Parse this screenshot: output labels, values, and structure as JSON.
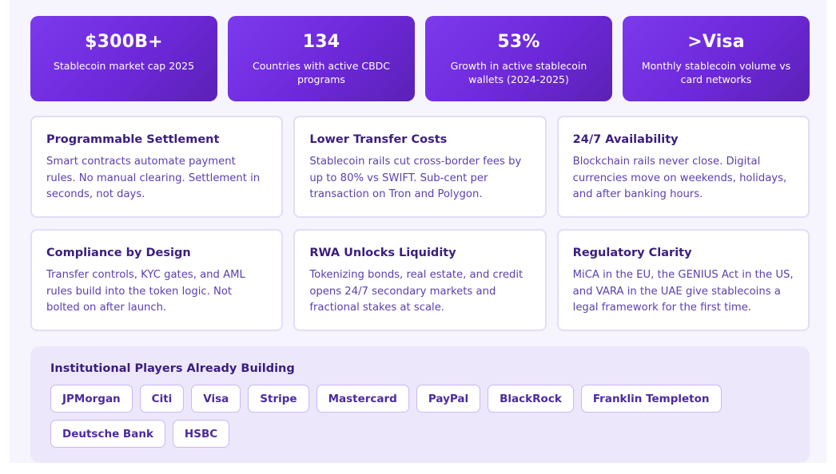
{
  "stats": [
    {
      "value": "$300B+",
      "label": "Stablecoin market cap 2025"
    },
    {
      "value": "134",
      "label": "Countries with active CBDC programs"
    },
    {
      "value": "53%",
      "label": "Growth in active stablecoin wallets (2024-2025)"
    },
    {
      "value": ">Visa",
      "label": "Monthly stablecoin volume vs card networks"
    }
  ],
  "features": [
    {
      "title": "Programmable Settlement",
      "body": "Smart contracts automate payment rules. No manual clearing. Settlement in seconds, not days."
    },
    {
      "title": "Lower Transfer Costs",
      "body": "Stablecoin rails cut cross-border fees by up to 80% vs SWIFT. Sub-cent per transaction on Tron and Polygon."
    },
    {
      "title": "24/7 Availability",
      "body": "Blockchain rails never close. Digital currencies move on weekends, holidays, and after banking hours."
    },
    {
      "title": "Compliance by Design",
      "body": "Transfer controls, KYC gates, and AML rules build into the token logic. Not bolted on after launch."
    },
    {
      "title": "RWA Unlocks Liquidity",
      "body": "Tokenizing bonds, real estate, and credit opens 24/7 secondary markets and fractional stakes at scale."
    },
    {
      "title": "Regulatory Clarity",
      "body": "MiCA in the EU, the GENIUS Act in the US, and VARA in the UAE give stablecoins a legal framework for the first time."
    }
  ],
  "players": {
    "title": "Institutional Players Already Building",
    "items": [
      "JPMorgan",
      "Citi",
      "Visa",
      "Stripe",
      "Mastercard",
      "PayPal",
      "BlackRock",
      "Franklin Templeton",
      "Deutsche Bank",
      "HSBC"
    ]
  },
  "colors": {
    "accent": "#6d28d9",
    "accent_dark": "#5b21b6",
    "title_text": "#3b1e80",
    "body_text": "#5b3fb0",
    "card_border": "#e4dcf8",
    "panel_bg": "#ede7fc"
  }
}
